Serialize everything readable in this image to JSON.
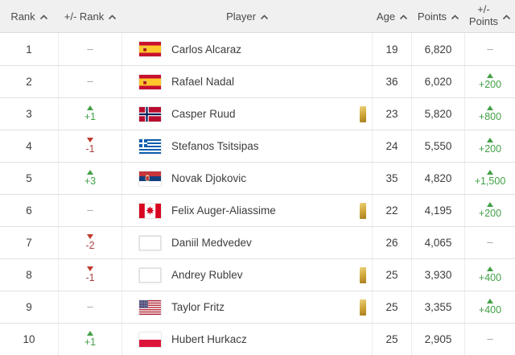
{
  "colors": {
    "header_bg": "#f0f0f0",
    "green": "#43a047",
    "red": "#c0392b",
    "gold_light": "#ecd27a",
    "gold_dark": "#a57d1e"
  },
  "misc": {
    "dash": "–"
  },
  "table": {
    "columns": [
      {
        "label": "Rank"
      },
      {
        "label": "+/- Rank"
      },
      {
        "label": "Player"
      },
      {
        "label": "Age"
      },
      {
        "label": "Points"
      },
      {
        "label_line1": "+/-",
        "label_line2": "Points"
      }
    ],
    "rows": [
      {
        "rank": "1",
        "rank_change": null,
        "flag": "esp",
        "player": "Carlos Alcaraz",
        "badge": false,
        "age": "19",
        "points": "6,820",
        "points_change": null
      },
      {
        "rank": "2",
        "rank_change": null,
        "flag": "esp",
        "player": "Rafael Nadal",
        "badge": false,
        "age": "36",
        "points": "6,020",
        "points_change": "+200"
      },
      {
        "rank": "3",
        "rank_change": "+1",
        "flag": "nor",
        "player": "Casper Ruud",
        "badge": true,
        "age": "23",
        "points": "5,820",
        "points_change": "+800"
      },
      {
        "rank": "4",
        "rank_change": "-1",
        "flag": "gre",
        "player": "Stefanos Tsitsipas",
        "badge": false,
        "age": "24",
        "points": "5,550",
        "points_change": "+200"
      },
      {
        "rank": "5",
        "rank_change": "+3",
        "flag": "srb",
        "player": "Novak Djokovic",
        "badge": false,
        "age": "35",
        "points": "4,820",
        "points_change": "+1,500"
      },
      {
        "rank": "6",
        "rank_change": null,
        "flag": "can",
        "player": "Felix Auger-Aliassime",
        "badge": true,
        "age": "22",
        "points": "4,195",
        "points_change": "+200"
      },
      {
        "rank": "7",
        "rank_change": "-2",
        "flag": "blank",
        "player": "Daniil Medvedev",
        "badge": false,
        "age": "26",
        "points": "4,065",
        "points_change": null
      },
      {
        "rank": "8",
        "rank_change": "-1",
        "flag": "blank",
        "player": "Andrey Rublev",
        "badge": true,
        "age": "25",
        "points": "3,930",
        "points_change": "+400"
      },
      {
        "rank": "9",
        "rank_change": null,
        "flag": "usa",
        "player": "Taylor Fritz",
        "badge": true,
        "age": "25",
        "points": "3,355",
        "points_change": "+400"
      },
      {
        "rank": "10",
        "rank_change": "+1",
        "flag": "pol",
        "player": "Hubert Hurkacz",
        "badge": false,
        "age": "25",
        "points": "2,905",
        "points_change": null
      }
    ]
  }
}
